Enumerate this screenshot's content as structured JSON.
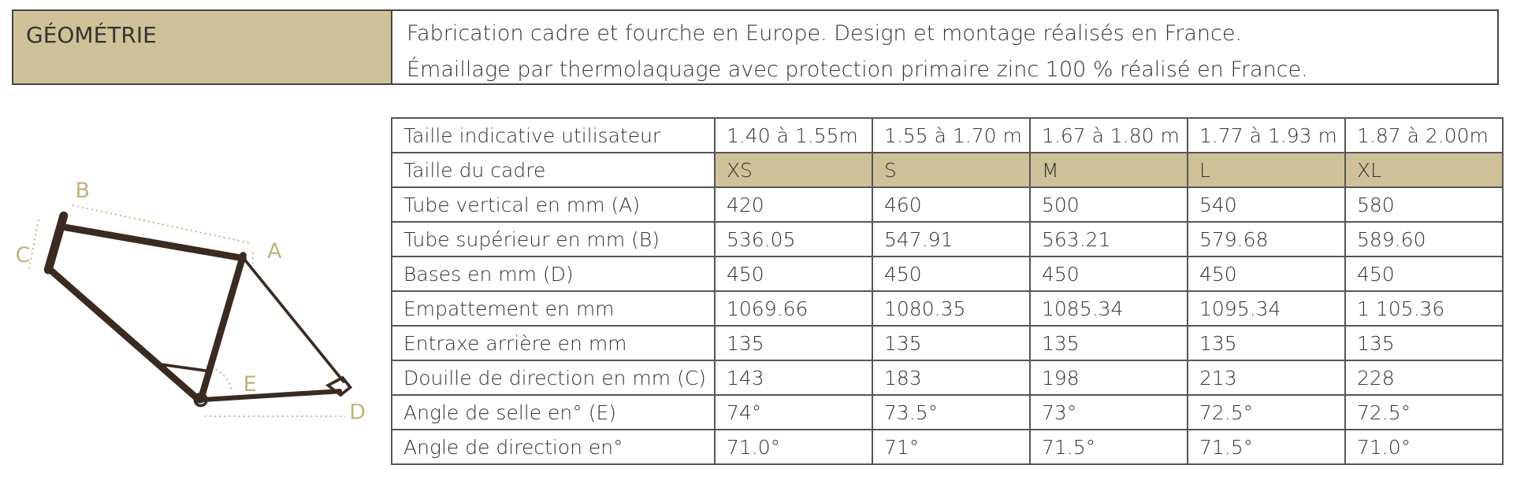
{
  "header": {
    "title": "GÉOMÉTRIE",
    "lines": [
      "Fabrication cadre et fourche en Europe. Design et montage réalisés en France.",
      "Émaillage par thermolaquage avec protection primaire zinc 100 % réalisé en France."
    ]
  },
  "diagram": {
    "labels": [
      "B",
      "C",
      "A",
      "E",
      "D"
    ]
  },
  "table": {
    "rows": [
      [
        "Taille indicative utilisateur",
        "1.40 à 1.55m",
        "1.55 à 1.70 m",
        "1.67 à 1.80 m",
        "1.77 à 1.93 m",
        "1.87 à 2.00m"
      ],
      [
        "Taille du cadre",
        "XS",
        "S",
        "M",
        "L",
        "XL"
      ],
      [
        "Tube vertical en mm (A)",
        "420",
        "460",
        "500",
        "540",
        "580"
      ],
      [
        "Tube supérieur en mm (B)",
        "536.05",
        "547.91",
        "563.21",
        "579.68",
        "589.60"
      ],
      [
        "Bases en mm (D)",
        "450",
        "450",
        "450",
        "450",
        "450"
      ],
      [
        "Empattement en mm",
        "1069.66",
        "1080.35",
        "1085.34",
        "1095.34",
        "1 105.36"
      ],
      [
        "Entraxe arrière en mm",
        "135",
        "135",
        "135",
        "135",
        "135"
      ],
      [
        "Douille de direction en mm (C)",
        "143",
        "183",
        "198",
        "213",
        "228"
      ],
      [
        "Angle de selle en° (E)",
        "74°",
        "73.5°",
        "73°",
        "72.5°",
        "72.5°"
      ],
      [
        "Angle de direction en°",
        "71.0°",
        "71°",
        "71.5°",
        "71.5°",
        "71.0°"
      ]
    ]
  }
}
